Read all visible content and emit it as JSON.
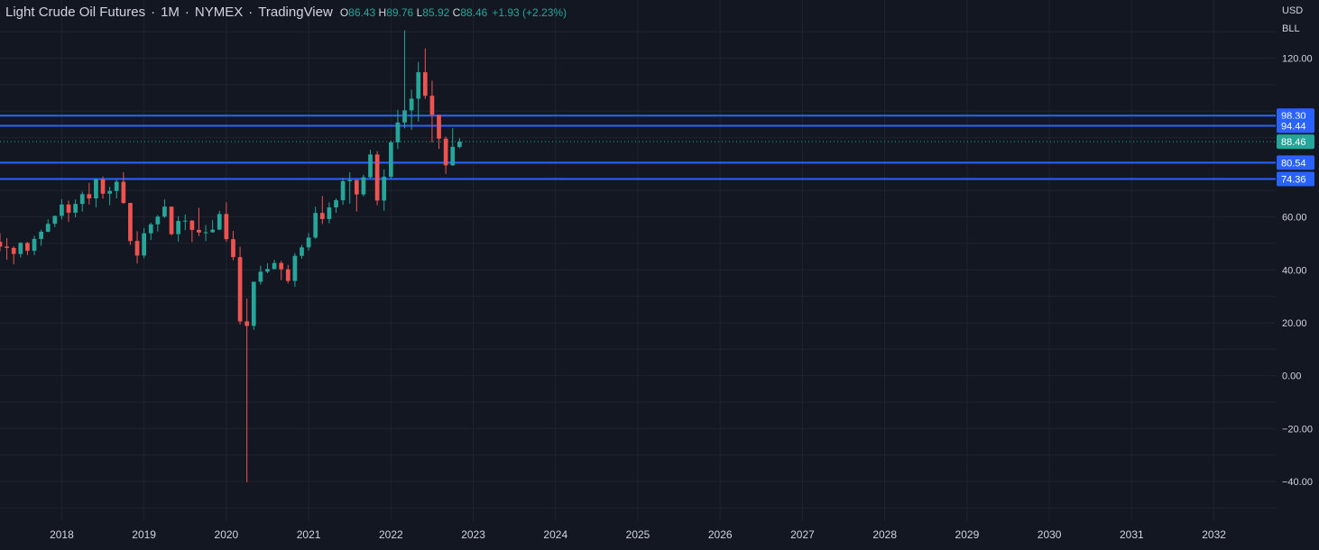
{
  "legend": {
    "title": "Light Crude Oil Futures",
    "interval": "1M",
    "exchange": "NYMEX",
    "source": "TradingView",
    "open_label": "O",
    "open": "86.43",
    "high_label": "H",
    "high": "89.76",
    "low_label": "L",
    "low": "85.92",
    "close_label": "C",
    "close": "88.46",
    "change": "+1.93 (+2.23%)"
  },
  "currency": {
    "code": "USD",
    "unit": "BLL"
  },
  "colors": {
    "background": "#131722",
    "up": "#26a69a",
    "down": "#ef5350",
    "level_line": "#2962ff",
    "grid": "#1f232e",
    "text": "#d1d4dc"
  },
  "chart_data": {
    "type": "candlestick",
    "interval": "1M",
    "xlim": [
      "2017-04",
      "2032-10"
    ],
    "ylim": [
      -55,
      142
    ],
    "grid": true,
    "y_ticks": [
      120,
      60,
      40,
      20,
      0,
      -20,
      -40
    ],
    "y_tick_labels": [
      "120.00",
      "60.00",
      "40.00",
      "20.00",
      "0.00",
      "−20.00",
      "−40.00"
    ],
    "x_tick_labels": [
      "2018",
      "2019",
      "2020",
      "2021",
      "2022",
      "2023",
      "2024",
      "2025",
      "2026",
      "2027",
      "2028",
      "2029",
      "2030",
      "2031",
      "2032"
    ],
    "horizontal_levels": [
      {
        "value": 98.3,
        "label": "98.30"
      },
      {
        "value": 94.44,
        "label": "94.44"
      },
      {
        "value": 80.54,
        "label": "80.54"
      },
      {
        "value": 74.36,
        "label": "74.36"
      }
    ],
    "last_price": {
      "value": 88.46,
      "label": "88.46"
    },
    "candles": [
      {
        "t": "2017-04",
        "o": 50.6,
        "h": 53.8,
        "l": 47.0,
        "c": 48.8
      },
      {
        "t": "2017-05",
        "o": 48.8,
        "h": 52.0,
        "l": 43.8,
        "c": 48.3
      },
      {
        "t": "2017-06",
        "o": 48.3,
        "h": 48.9,
        "l": 42.1,
        "c": 46.0
      },
      {
        "t": "2017-07",
        "o": 46.0,
        "h": 50.4,
        "l": 44.7,
        "c": 50.2
      },
      {
        "t": "2017-08",
        "o": 50.2,
        "h": 50.5,
        "l": 45.6,
        "c": 47.2
      },
      {
        "t": "2017-09",
        "o": 47.2,
        "h": 52.9,
        "l": 45.6,
        "c": 51.7
      },
      {
        "t": "2017-10",
        "o": 51.7,
        "h": 55.2,
        "l": 49.1,
        "c": 54.4
      },
      {
        "t": "2017-11",
        "o": 54.4,
        "h": 59.1,
        "l": 54.2,
        "c": 57.4
      },
      {
        "t": "2017-12",
        "o": 57.4,
        "h": 60.5,
        "l": 56.1,
        "c": 60.4
      },
      {
        "t": "2018-01",
        "o": 60.4,
        "h": 66.7,
        "l": 59.1,
        "c": 64.7
      },
      {
        "t": "2018-02",
        "o": 64.7,
        "h": 66.2,
        "l": 58.1,
        "c": 61.6
      },
      {
        "t": "2018-03",
        "o": 61.6,
        "h": 66.6,
        "l": 59.9,
        "c": 64.9
      },
      {
        "t": "2018-04",
        "o": 64.9,
        "h": 69.6,
        "l": 62.0,
        "c": 68.6
      },
      {
        "t": "2018-05",
        "o": 68.6,
        "h": 72.9,
        "l": 64.7,
        "c": 67.0
      },
      {
        "t": "2018-06",
        "o": 67.0,
        "h": 74.5,
        "l": 63.6,
        "c": 74.2
      },
      {
        "t": "2018-07",
        "o": 74.2,
        "h": 75.3,
        "l": 66.9,
        "c": 68.8
      },
      {
        "t": "2018-08",
        "o": 68.8,
        "h": 71.4,
        "l": 64.4,
        "c": 69.8
      },
      {
        "t": "2018-09",
        "o": 69.8,
        "h": 74.0,
        "l": 67.0,
        "c": 73.3
      },
      {
        "t": "2018-10",
        "o": 73.3,
        "h": 76.9,
        "l": 64.9,
        "c": 65.3
      },
      {
        "t": "2018-11",
        "o": 65.3,
        "h": 65.3,
        "l": 49.4,
        "c": 50.9
      },
      {
        "t": "2018-12",
        "o": 50.9,
        "h": 54.6,
        "l": 42.4,
        "c": 45.4
      },
      {
        "t": "2019-01",
        "o": 45.4,
        "h": 55.8,
        "l": 44.4,
        "c": 53.8
      },
      {
        "t": "2019-02",
        "o": 53.8,
        "h": 57.8,
        "l": 51.3,
        "c": 57.2
      },
      {
        "t": "2019-03",
        "o": 57.2,
        "h": 60.7,
        "l": 54.5,
        "c": 60.1
      },
      {
        "t": "2019-04",
        "o": 60.1,
        "h": 66.6,
        "l": 59.6,
        "c": 63.9
      },
      {
        "t": "2019-05",
        "o": 63.9,
        "h": 63.9,
        "l": 53.0,
        "c": 53.5
      },
      {
        "t": "2019-06",
        "o": 53.5,
        "h": 60.3,
        "l": 50.6,
        "c": 58.5
      },
      {
        "t": "2019-07",
        "o": 58.5,
        "h": 60.9,
        "l": 55.0,
        "c": 58.6
      },
      {
        "t": "2019-08",
        "o": 58.6,
        "h": 58.8,
        "l": 50.5,
        "c": 55.1
      },
      {
        "t": "2019-09",
        "o": 55.1,
        "h": 63.4,
        "l": 52.8,
        "c": 54.1
      },
      {
        "t": "2019-10",
        "o": 54.1,
        "h": 56.9,
        "l": 50.9,
        "c": 54.2
      },
      {
        "t": "2019-11",
        "o": 54.2,
        "h": 58.8,
        "l": 54.0,
        "c": 55.2
      },
      {
        "t": "2019-12",
        "o": 55.2,
        "h": 62.3,
        "l": 55.0,
        "c": 61.1
      },
      {
        "t": "2020-01",
        "o": 61.1,
        "h": 65.6,
        "l": 50.6,
        "c": 51.6
      },
      {
        "t": "2020-02",
        "o": 51.6,
        "h": 54.7,
        "l": 43.6,
        "c": 44.8
      },
      {
        "t": "2020-03",
        "o": 44.8,
        "h": 48.7,
        "l": 19.3,
        "c": 20.5
      },
      {
        "t": "2020-04",
        "o": 20.5,
        "h": 29.1,
        "l": -40.3,
        "c": 18.8
      },
      {
        "t": "2020-05",
        "o": 18.8,
        "h": 35.3,
        "l": 17.3,
        "c": 35.5
      },
      {
        "t": "2020-06",
        "o": 35.5,
        "h": 41.6,
        "l": 34.4,
        "c": 39.3
      },
      {
        "t": "2020-07",
        "o": 39.3,
        "h": 42.5,
        "l": 38.7,
        "c": 40.3
      },
      {
        "t": "2020-08",
        "o": 40.3,
        "h": 43.8,
        "l": 40.2,
        "c": 42.6
      },
      {
        "t": "2020-09",
        "o": 42.6,
        "h": 43.4,
        "l": 36.1,
        "c": 40.2
      },
      {
        "t": "2020-10",
        "o": 40.2,
        "h": 41.9,
        "l": 34.9,
        "c": 35.8
      },
      {
        "t": "2020-11",
        "o": 35.8,
        "h": 46.3,
        "l": 33.6,
        "c": 45.3
      },
      {
        "t": "2020-12",
        "o": 45.3,
        "h": 49.4,
        "l": 44.2,
        "c": 48.5
      },
      {
        "t": "2021-01",
        "o": 48.5,
        "h": 53.9,
        "l": 47.2,
        "c": 52.2
      },
      {
        "t": "2021-02",
        "o": 52.2,
        "h": 63.8,
        "l": 51.7,
        "c": 61.5
      },
      {
        "t": "2021-03",
        "o": 61.5,
        "h": 67.9,
        "l": 57.3,
        "c": 59.2
      },
      {
        "t": "2021-04",
        "o": 59.2,
        "h": 65.5,
        "l": 57.6,
        "c": 63.6
      },
      {
        "t": "2021-05",
        "o": 63.6,
        "h": 67.0,
        "l": 61.6,
        "c": 66.3
      },
      {
        "t": "2021-06",
        "o": 66.3,
        "h": 74.8,
        "l": 64.6,
        "c": 73.5
      },
      {
        "t": "2021-07",
        "o": 73.5,
        "h": 76.9,
        "l": 65.0,
        "c": 73.9
      },
      {
        "t": "2021-08",
        "o": 73.9,
        "h": 74.0,
        "l": 62.0,
        "c": 68.5
      },
      {
        "t": "2021-09",
        "o": 68.5,
        "h": 76.0,
        "l": 67.7,
        "c": 75.0
      },
      {
        "t": "2021-10",
        "o": 75.0,
        "h": 85.4,
        "l": 74.4,
        "c": 83.6
      },
      {
        "t": "2021-11",
        "o": 83.6,
        "h": 84.9,
        "l": 64.4,
        "c": 66.2
      },
      {
        "t": "2021-12",
        "o": 66.2,
        "h": 78.0,
        "l": 62.4,
        "c": 75.2
      },
      {
        "t": "2022-01",
        "o": 75.2,
        "h": 88.8,
        "l": 74.3,
        "c": 88.2
      },
      {
        "t": "2022-02",
        "o": 88.2,
        "h": 100.5,
        "l": 85.7,
        "c": 95.7
      },
      {
        "t": "2022-03",
        "o": 95.7,
        "h": 130.5,
        "l": 93.5,
        "c": 100.3
      },
      {
        "t": "2022-04",
        "o": 100.3,
        "h": 108.1,
        "l": 92.9,
        "c": 104.7
      },
      {
        "t": "2022-05",
        "o": 104.7,
        "h": 118.6,
        "l": 96.0,
        "c": 114.7
      },
      {
        "t": "2022-06",
        "o": 114.7,
        "h": 123.7,
        "l": 104.6,
        "c": 105.8
      },
      {
        "t": "2022-07",
        "o": 105.8,
        "h": 111.5,
        "l": 88.1,
        "c": 98.6
      },
      {
        "t": "2022-08",
        "o": 98.6,
        "h": 97.7,
        "l": 85.7,
        "c": 89.6
      },
      {
        "t": "2022-09",
        "o": 89.6,
        "h": 90.4,
        "l": 76.3,
        "c": 79.5
      },
      {
        "t": "2022-10",
        "o": 79.5,
        "h": 93.6,
        "l": 79.3,
        "c": 86.5
      },
      {
        "t": "2022-11",
        "o": 86.43,
        "h": 89.76,
        "l": 85.92,
        "c": 88.46
      }
    ]
  }
}
